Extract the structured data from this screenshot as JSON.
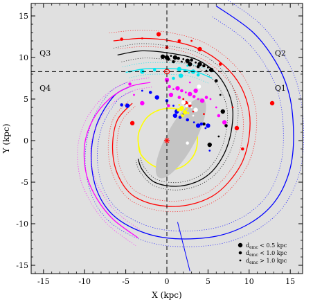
{
  "chart_data": {
    "type": "scatter",
    "xlabel": "X (kpc)",
    "ylabel": "Y (kpc)",
    "xlim": [
      -16.5,
      16.5
    ],
    "ylim": [
      -16,
      16.5
    ],
    "xticks": [
      -15,
      -10,
      -5,
      0,
      5,
      10,
      15
    ],
    "yticks": [
      -15,
      -10,
      -5,
      0,
      5,
      10,
      15
    ],
    "grid": false,
    "background": "#e0e0e0",
    "sun": {
      "x": 0,
      "y": 8.3
    },
    "galactic_center": {
      "x": 0,
      "y": 0
    },
    "reference_lines": {
      "x": 0,
      "y": 8.3,
      "style": "dashed"
    },
    "quadrants": [
      {
        "label": "Q3",
        "x": -14.8,
        "y": 10.2
      },
      {
        "label": "Q2",
        "x": 13.8,
        "y": 10.2
      },
      {
        "label": "Q4",
        "x": -14.8,
        "y": 6.0
      },
      {
        "label": "Q1",
        "x": 13.8,
        "y": 6.0
      }
    ],
    "legend": {
      "position": "bottom-right",
      "entries": [
        {
          "prefix": "d",
          "sub": "emc",
          "text": " < 0.5 kpc",
          "size": "large"
        },
        {
          "prefix": "d",
          "sub": "emc",
          "text": " < 1.0 kpc",
          "size": "medium"
        },
        {
          "prefix": "d",
          "sub": "emc",
          "text": " > 1.0 kpc",
          "size": "small"
        }
      ]
    },
    "arms": [
      {
        "color": "#0000ff",
        "points": [
          [
            6,
            16.2
          ],
          [
            10.5,
            13
          ],
          [
            13.5,
            9
          ],
          [
            15,
            5
          ],
          [
            15.4,
            0
          ],
          [
            14.8,
            -4
          ],
          [
            13,
            -7.5
          ],
          [
            10,
            -10
          ],
          [
            6,
            -11.5
          ],
          [
            1,
            -11.8
          ],
          [
            -3,
            -11
          ],
          [
            -6.5,
            -9
          ],
          [
            -8.5,
            -6
          ],
          [
            -9.2,
            -2
          ],
          [
            -8.5,
            2
          ],
          [
            -6.5,
            5.3
          ],
          [
            -4.5,
            6.5
          ]
        ]
      },
      {
        "color": "#ff00ff",
        "points": [
          [
            -2,
            7
          ],
          [
            -4.5,
            6.5
          ],
          [
            -7,
            5
          ],
          [
            -9,
            2.5
          ],
          [
            -10,
            -0.5
          ],
          [
            -9.8,
            -4
          ],
          [
            -8.5,
            -7
          ],
          [
            -6.5,
            -9.5
          ],
          [
            -3.5,
            -11.7
          ]
        ]
      },
      {
        "color": "#ff0000",
        "points": [
          [
            -6.5,
            12
          ],
          [
            -3,
            12.3
          ],
          [
            0.5,
            12
          ],
          [
            4,
            11
          ],
          [
            7,
            9
          ],
          [
            9,
            6.5
          ],
          [
            10,
            3.5
          ],
          [
            10,
            0.5
          ],
          [
            9.2,
            -2.5
          ],
          [
            7.5,
            -5
          ],
          [
            5.5,
            -6.7
          ],
          [
            2.8,
            -7.7
          ],
          [
            0,
            -7.9
          ],
          [
            -2.8,
            -7.3
          ],
          [
            -4.8,
            -6
          ],
          [
            -6.2,
            -3.5
          ],
          [
            -6.6,
            -0.5
          ],
          [
            -6,
            2.5
          ],
          [
            -4.2,
            4.5
          ]
        ]
      },
      {
        "color": "#000000",
        "points": [
          [
            -6,
            10.3
          ],
          [
            -3,
            10.8
          ],
          [
            0.5,
            10.5
          ],
          [
            3.5,
            9.8
          ],
          [
            5.8,
            8.3
          ],
          [
            7.3,
            6.2
          ],
          [
            8,
            3.8
          ],
          [
            7.8,
            1
          ],
          [
            7,
            -1.5
          ],
          [
            5.5,
            -3.7
          ],
          [
            3.5,
            -5
          ],
          [
            1,
            -5.5
          ],
          [
            -1.5,
            -5
          ],
          [
            -3,
            -3.5
          ],
          [
            -3.5,
            -2.2
          ]
        ]
      },
      {
        "color": "#00e5ee",
        "points": [
          [
            -5,
            8.2
          ],
          [
            -3,
            8.6
          ],
          [
            -1,
            8.7
          ],
          [
            1.5,
            8.6
          ],
          [
            3.5,
            8.3
          ],
          [
            5.5,
            7.5
          ]
        ]
      },
      {
        "color": "#ffff00",
        "points": [
          [
            -3.5,
            0
          ],
          [
            -3.2,
            -1.6
          ],
          [
            -1.7,
            -3.0
          ],
          [
            0.3,
            -3.5
          ],
          [
            2.1,
            -3.0
          ],
          [
            3.4,
            -1.5
          ],
          [
            3.7,
            0.5
          ],
          [
            3.1,
            2.4
          ],
          [
            1.6,
            3.7
          ],
          [
            -0.5,
            3.8
          ],
          [
            -2.3,
            2.9
          ],
          [
            -3.3,
            1.3
          ]
        ]
      }
    ],
    "bar": {
      "center": [
        1.7,
        0.3
      ],
      "half_length": 5.5,
      "half_width": 1.7,
      "angle_deg": -61,
      "color": "#c4c4c4"
    },
    "dashed_bar_line": {
      "color": "#888888",
      "points": [
        [
          1.3,
          -9.8
        ],
        [
          2.8,
          -15.7
        ]
      ]
    },
    "series": [
      {
        "name": "black",
        "color": "#000000",
        "points": [
          [
            0,
            10
          ],
          [
            0.2,
            9.8
          ],
          [
            0.5,
            10.2
          ],
          [
            1,
            10
          ],
          [
            1.4,
            9.9
          ],
          [
            2,
            9.8
          ],
          [
            2.5,
            9.6
          ],
          [
            3,
            9.7
          ],
          [
            3.5,
            9.4
          ],
          [
            4,
            9.2
          ],
          [
            4.5,
            9.0
          ],
          [
            5,
            8.8
          ],
          [
            5.4,
            8.5
          ],
          [
            0.8,
            9.5
          ],
          [
            1.8,
            9.5
          ],
          [
            2.8,
            9.2
          ],
          [
            3.8,
            8.9
          ],
          [
            4.8,
            8.4
          ],
          [
            -0.5,
            10.1
          ],
          [
            6,
            7.2
          ],
          [
            6.5,
            5.5
          ],
          [
            6.8,
            3.5
          ],
          [
            7.2,
            1.8
          ],
          [
            6.3,
            0.5
          ],
          [
            5.2,
            -0.5
          ],
          [
            4.5,
            2
          ]
        ],
        "size": "mixed"
      },
      {
        "name": "red",
        "color": "#ff0000",
        "points": [
          [
            -5.5,
            12.2
          ],
          [
            -3,
            12.3
          ],
          [
            -1,
            12.8
          ],
          [
            1.5,
            12
          ],
          [
            3,
            12
          ],
          [
            4,
            11
          ],
          [
            6.5,
            9.2
          ],
          [
            8,
            4
          ],
          [
            8.5,
            1.5
          ],
          [
            9.2,
            -1
          ],
          [
            2,
            5
          ],
          [
            2.3,
            4.5
          ],
          [
            2.8,
            4.2
          ],
          [
            3.2,
            3.5
          ],
          [
            -4.2,
            2.1
          ],
          [
            0,
            11.2
          ],
          [
            4.5,
            3.2
          ],
          [
            12.8,
            4.5
          ]
        ],
        "size": "mixed"
      },
      {
        "name": "cyan",
        "color": "#00e5ee",
        "points": [
          [
            -4.5,
            8.3
          ],
          [
            -3,
            8.3
          ],
          [
            -1.5,
            8.5
          ],
          [
            0,
            8.6
          ],
          [
            1.5,
            8.6
          ],
          [
            2.2,
            8.4
          ],
          [
            2.7,
            8.2
          ],
          [
            3.2,
            8.3
          ],
          [
            3.8,
            7.9
          ],
          [
            2.5,
            9
          ],
          [
            1.7,
            7.8
          ],
          [
            0.8,
            7.5
          ]
        ],
        "size": "mixed"
      },
      {
        "name": "magenta",
        "color": "#ff00ff",
        "points": [
          [
            0,
            7.3
          ],
          [
            0.3,
            6.5
          ],
          [
            0.8,
            6.2
          ],
          [
            1.3,
            6.3
          ],
          [
            1.8,
            6.0
          ],
          [
            2.3,
            5.8
          ],
          [
            2.8,
            5.6
          ],
          [
            3.3,
            5.3
          ],
          [
            3.8,
            5.0
          ],
          [
            4.3,
            4.8
          ],
          [
            4.8,
            5.2
          ],
          [
            5.3,
            5.0
          ],
          [
            0.5,
            5.5
          ],
          [
            1.5,
            5.2
          ],
          [
            2.8,
            7.0
          ],
          [
            3.5,
            6.0
          ],
          [
            -4.5,
            6.8
          ],
          [
            -4,
            5.5
          ],
          [
            -3,
            4.5
          ],
          [
            0.2,
            4.2
          ],
          [
            6,
            4
          ],
          [
            7,
            2.2
          ],
          [
            6.3,
            3
          ]
        ],
        "size": "mixed"
      },
      {
        "name": "blue",
        "color": "#0000ff",
        "points": [
          [
            -2,
            5.8
          ],
          [
            -3,
            6
          ],
          [
            -1.2,
            5.2
          ],
          [
            0,
            4.8
          ],
          [
            0.8,
            4.2
          ],
          [
            1.2,
            3.5
          ],
          [
            1.6,
            2.8
          ],
          [
            2,
            3.2
          ],
          [
            1,
            3
          ],
          [
            2.5,
            2.5
          ],
          [
            3.3,
            2.2
          ],
          [
            3.8,
            1.8
          ],
          [
            4.2,
            2
          ],
          [
            4.7,
            1.5
          ],
          [
            -4.8,
            4.2
          ],
          [
            -5.5,
            4.3
          ],
          [
            5.2,
            -1.2
          ],
          [
            5,
            1.8
          ]
        ],
        "size": "mixed"
      },
      {
        "name": "yellow",
        "color": "#ffff00",
        "points": [
          [
            1.5,
            4.3
          ],
          [
            1.8,
            3.9
          ],
          [
            1.4,
            3.7
          ],
          [
            2.4,
            3.8
          ],
          [
            2.2,
            3.4
          ],
          [
            1.9,
            3.0
          ],
          [
            2.6,
            3.3
          ]
        ],
        "size": "mixed"
      },
      {
        "name": "white",
        "color": "#ffffff",
        "points": [
          [
            2,
            4.6
          ],
          [
            2.4,
            4.2
          ],
          [
            3.0,
            4.0
          ],
          [
            3.5,
            3.7
          ],
          [
            2.8,
            4.5
          ],
          [
            3.2,
            3.0
          ],
          [
            3.9,
            6.5
          ],
          [
            2.5,
            -0.3
          ]
        ],
        "size": "mixed"
      }
    ]
  }
}
